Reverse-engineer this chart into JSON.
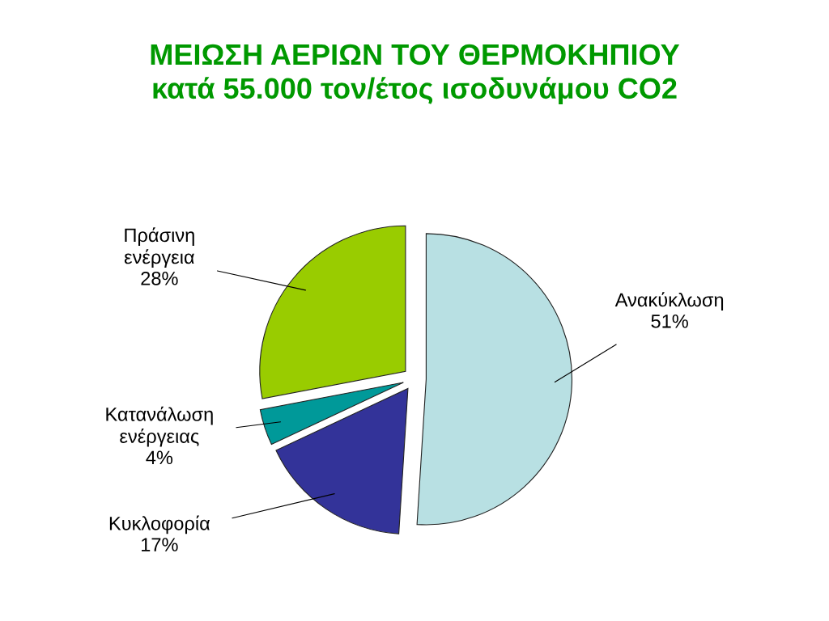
{
  "chart_data": {
    "type": "pie",
    "title": "ΜΕΙΩΣΗ ΑΕΡΙΩΝ ΤΟΥ ΘΕΡΜΟΚΗΠΙΟΥ\nκατά 55.000 τον/έτος ισοδυνάμου CO2",
    "categories": [
      "Ανακύκλωση",
      "Κυκλοφορία",
      "Κατανάλωση ενέργειας",
      "Πράσινη ενέργεια"
    ],
    "values": [
      51,
      17,
      4,
      28
    ],
    "value_labels": [
      "51%",
      "17%",
      "4%",
      "28%"
    ],
    "colors": [
      "#b8e0e3",
      "#333399",
      "#009999",
      "#99cc00"
    ],
    "legend": false
  }
}
